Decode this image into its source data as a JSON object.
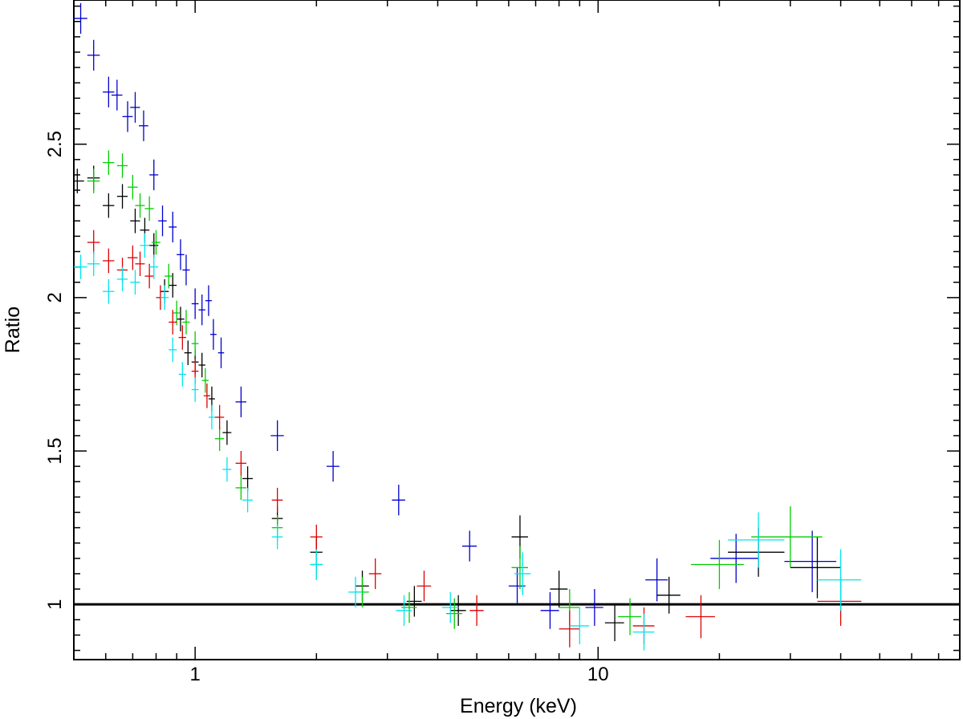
{
  "chart_data": {
    "type": "scatter",
    "title": "",
    "xlabel": "Energy (keV)",
    "ylabel": "Ratio",
    "xscale": "log",
    "xlim": [
      0.5,
      79
    ],
    "ylim": [
      0.82,
      2.97
    ],
    "grid": false,
    "legend": "none",
    "x_tick_labels": [
      {
        "value": 1,
        "label": "1"
      },
      {
        "value": 10,
        "label": "10"
      }
    ],
    "y_tick_labels": [
      {
        "value": 1,
        "label": "1"
      },
      {
        "value": 1.5,
        "label": "1.5"
      },
      {
        "value": 2,
        "label": "2"
      },
      {
        "value": 2.5,
        "label": "2.5"
      }
    ],
    "reference_line": {
      "y": 1.0,
      "color": "#000000"
    },
    "series": [
      {
        "color": "#0000cc",
        "x": [
          0.52,
          0.56,
          0.61,
          0.64,
          0.68,
          0.71,
          0.745,
          0.79,
          0.83,
          0.88,
          0.92,
          0.95,
          1.0,
          1.04,
          1.08,
          1.11,
          1.16,
          1.3,
          1.6,
          2.2,
          3.2,
          4.8,
          6.3,
          7.6,
          9.8,
          14.0,
          22.0,
          34.0
        ],
        "y": [
          2.91,
          2.79,
          2.67,
          2.66,
          2.59,
          2.62,
          2.56,
          2.4,
          2.25,
          2.23,
          2.14,
          2.09,
          1.98,
          1.96,
          1.99,
          1.88,
          1.82,
          1.66,
          1.55,
          1.45,
          1.34,
          1.19,
          1.06,
          0.98,
          0.99,
          1.08,
          1.15,
          1.14
        ],
        "xerr": [
          0.02,
          0.02,
          0.02,
          0.02,
          0.02,
          0.02,
          0.02,
          0.02,
          0.02,
          0.02,
          0.02,
          0.02,
          0.02,
          0.02,
          0.02,
          0.02,
          0.02,
          0.04,
          0.06,
          0.08,
          0.12,
          0.2,
          0.3,
          0.4,
          0.5,
          0.9,
          3.0,
          5.0
        ],
        "yerr": [
          0.05,
          0.05,
          0.05,
          0.05,
          0.05,
          0.05,
          0.05,
          0.05,
          0.05,
          0.05,
          0.05,
          0.05,
          0.05,
          0.05,
          0.05,
          0.05,
          0.05,
          0.05,
          0.05,
          0.05,
          0.05,
          0.05,
          0.06,
          0.06,
          0.06,
          0.07,
          0.08,
          0.1
        ]
      },
      {
        "color": "#000000",
        "x": [
          0.51,
          0.56,
          0.61,
          0.66,
          0.71,
          0.75,
          0.79,
          0.84,
          0.88,
          0.92,
          0.96,
          1.0,
          1.04,
          1.1,
          1.2,
          1.35,
          1.6,
          2.0,
          2.6,
          3.5,
          4.5,
          6.4,
          8.0,
          11.0,
          15.0,
          25.0,
          35.0
        ],
        "y": [
          2.38,
          2.39,
          2.3,
          2.33,
          2.25,
          2.22,
          2.17,
          2.02,
          2.04,
          1.93,
          1.82,
          1.79,
          1.78,
          1.67,
          1.56,
          1.41,
          1.28,
          1.17,
          1.06,
          1.01,
          0.98,
          1.22,
          1.05,
          0.94,
          1.03,
          1.17,
          1.12
        ],
        "xerr": [
          0.02,
          0.02,
          0.02,
          0.02,
          0.02,
          0.02,
          0.02,
          0.02,
          0.02,
          0.02,
          0.02,
          0.02,
          0.02,
          0.02,
          0.03,
          0.04,
          0.05,
          0.07,
          0.1,
          0.15,
          0.2,
          0.3,
          0.4,
          0.6,
          1.0,
          4.0,
          5.0
        ],
        "yerr": [
          0.04,
          0.04,
          0.04,
          0.04,
          0.04,
          0.04,
          0.04,
          0.04,
          0.04,
          0.04,
          0.04,
          0.04,
          0.04,
          0.04,
          0.04,
          0.04,
          0.04,
          0.05,
          0.05,
          0.05,
          0.05,
          0.07,
          0.06,
          0.06,
          0.06,
          0.08,
          0.1
        ]
      },
      {
        "color": "#00cc00",
        "x": [
          0.56,
          0.61,
          0.66,
          0.7,
          0.73,
          0.77,
          0.8,
          0.86,
          0.9,
          0.95,
          1.0,
          1.06,
          1.15,
          1.3,
          1.6,
          2.0,
          2.6,
          3.4,
          4.4,
          6.4,
          8.5,
          12.0,
          20.0,
          30.0
        ],
        "y": [
          2.38,
          2.44,
          2.43,
          2.36,
          2.3,
          2.29,
          2.18,
          2.07,
          1.95,
          1.92,
          1.85,
          1.73,
          1.54,
          1.38,
          1.25,
          1.13,
          1.04,
          0.99,
          0.97,
          1.12,
          0.99,
          0.96,
          1.13,
          1.22
        ],
        "xerr": [
          0.02,
          0.02,
          0.02,
          0.02,
          0.02,
          0.02,
          0.02,
          0.02,
          0.02,
          0.02,
          0.02,
          0.02,
          0.03,
          0.04,
          0.05,
          0.07,
          0.1,
          0.15,
          0.2,
          0.3,
          0.5,
          0.8,
          3.0,
          6.0
        ],
        "yerr": [
          0.04,
          0.04,
          0.04,
          0.04,
          0.04,
          0.04,
          0.04,
          0.04,
          0.04,
          0.04,
          0.04,
          0.04,
          0.04,
          0.04,
          0.04,
          0.05,
          0.05,
          0.05,
          0.05,
          0.07,
          0.06,
          0.06,
          0.08,
          0.1
        ]
      },
      {
        "color": "#dd0000",
        "x": [
          0.56,
          0.61,
          0.66,
          0.7,
          0.73,
          0.77,
          0.82,
          0.88,
          0.93,
          1.0,
          1.07,
          1.15,
          1.3,
          1.6,
          2.0,
          2.8,
          3.7,
          5.0,
          8.5,
          13.0,
          18.0,
          40.0
        ],
        "y": [
          2.18,
          2.12,
          2.09,
          2.13,
          2.11,
          2.07,
          2.0,
          1.92,
          1.87,
          1.76,
          1.68,
          1.61,
          1.46,
          1.34,
          1.22,
          1.1,
          1.06,
          0.98,
          0.92,
          0.93,
          0.96,
          1.01
        ],
        "xerr": [
          0.02,
          0.02,
          0.02,
          0.02,
          0.02,
          0.02,
          0.02,
          0.02,
          0.02,
          0.02,
          0.02,
          0.03,
          0.04,
          0.05,
          0.07,
          0.1,
          0.15,
          0.2,
          0.5,
          0.8,
          1.5,
          5.0
        ],
        "yerr": [
          0.04,
          0.04,
          0.04,
          0.04,
          0.04,
          0.04,
          0.04,
          0.04,
          0.04,
          0.04,
          0.04,
          0.04,
          0.04,
          0.04,
          0.04,
          0.05,
          0.05,
          0.05,
          0.06,
          0.06,
          0.07,
          0.08
        ]
      },
      {
        "color": "#00e5ee",
        "x": [
          0.52,
          0.56,
          0.61,
          0.66,
          0.71,
          0.75,
          0.79,
          0.84,
          0.88,
          0.93,
          1.0,
          1.1,
          1.2,
          1.35,
          1.6,
          2.0,
          2.5,
          3.3,
          4.3,
          6.5,
          9.0,
          13.0,
          25.0,
          40.0
        ],
        "y": [
          2.1,
          2.11,
          2.02,
          2.06,
          2.05,
          2.17,
          2.1,
          2.0,
          1.83,
          1.75,
          1.7,
          1.61,
          1.44,
          1.34,
          1.22,
          1.13,
          1.04,
          0.98,
          0.99,
          1.1,
          0.93,
          0.91,
          1.21,
          1.08
        ],
        "xerr": [
          0.02,
          0.02,
          0.02,
          0.02,
          0.02,
          0.02,
          0.02,
          0.02,
          0.02,
          0.02,
          0.02,
          0.02,
          0.03,
          0.04,
          0.05,
          0.07,
          0.1,
          0.15,
          0.2,
          0.3,
          0.5,
          0.8,
          4.0,
          5.0
        ],
        "yerr": [
          0.04,
          0.04,
          0.04,
          0.04,
          0.04,
          0.04,
          0.04,
          0.04,
          0.04,
          0.04,
          0.04,
          0.04,
          0.04,
          0.04,
          0.04,
          0.05,
          0.05,
          0.05,
          0.05,
          0.07,
          0.06,
          0.06,
          0.09,
          0.1
        ]
      }
    ]
  }
}
